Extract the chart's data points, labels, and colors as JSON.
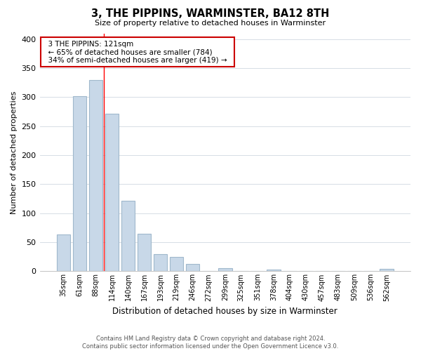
{
  "title": "3, THE PIPPINS, WARMINSTER, BA12 8TH",
  "subtitle": "Size of property relative to detached houses in Warminster",
  "xlabel": "Distribution of detached houses by size in Warminster",
  "ylabel": "Number of detached properties",
  "bar_labels": [
    "35sqm",
    "61sqm",
    "88sqm",
    "114sqm",
    "140sqm",
    "167sqm",
    "193sqm",
    "219sqm",
    "246sqm",
    "272sqm",
    "299sqm",
    "325sqm",
    "351sqm",
    "378sqm",
    "404sqm",
    "430sqm",
    "457sqm",
    "483sqm",
    "509sqm",
    "536sqm",
    "562sqm"
  ],
  "bar_values": [
    63,
    302,
    330,
    272,
    121,
    64,
    29,
    25,
    13,
    0,
    5,
    0,
    0,
    3,
    0,
    0,
    0,
    0,
    0,
    0,
    4
  ],
  "bar_color": "#c8d8e8",
  "bar_edge_color": "#a0b8cc",
  "red_line_x": 2.5,
  "ylim": [
    0,
    410
  ],
  "yticks": [
    0,
    50,
    100,
    150,
    200,
    250,
    300,
    350,
    400
  ],
  "annotation_title": "3 THE PIPPINS: 121sqm",
  "annotation_line1": "← 65% of detached houses are smaller (784)",
  "annotation_line2": "34% of semi-detached houses are larger (419) →",
  "footer_line1": "Contains HM Land Registry data © Crown copyright and database right 2024.",
  "footer_line2": "Contains public sector information licensed under the Open Government Licence v3.0.",
  "bg_color": "#ffffff",
  "grid_color": "#d0d8e0"
}
